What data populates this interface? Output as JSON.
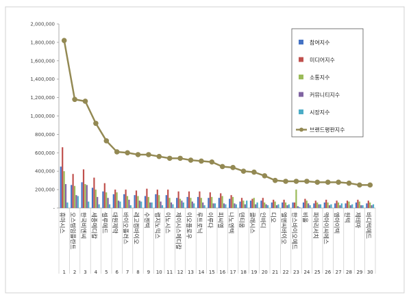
{
  "chart_data": {
    "type": "bar",
    "title": "",
    "xlabel": "",
    "ylabel": "",
    "ylim": [
      0,
      2000000
    ],
    "yticks": [
      "-",
      "200,000",
      "400,000",
      "600,000",
      "800,000",
      "1,000,000",
      "1,200,000",
      "1,400,000",
      "1,600,000",
      "1,800,000",
      "2,000,000"
    ],
    "grid": false,
    "legend_position": "top-right",
    "categories": [
      "휴마시스",
      "오스템임플란트",
      "한국비엔씨",
      "세종메디칼",
      "셀루메드",
      "대원제약",
      "바이오플러스",
      "레고켐바이오",
      "수젠텍",
      "랩지노믹스",
      "이노시스",
      "제이시스메디칼",
      "이오플로우",
      "루트로닉",
      "이루다",
      "피씨엘",
      "나노엔텍",
      "덴티움",
      "클래시스",
      "인바디",
      "디오",
      "엘앤씨바이오",
      "한스바이오메드",
      "비올",
      "파마리서치",
      "맥아이씨에스",
      "엠아이텍",
      "원텍",
      "제테마",
      "바디텍메드"
    ],
    "ranks": [
      "1",
      "2",
      "3",
      "4",
      "5",
      "6",
      "7",
      "8",
      "9",
      "10",
      "11",
      "12",
      "13",
      "14",
      "15",
      "16",
      "17",
      "18",
      "19",
      "20",
      "21",
      "22",
      "23",
      "24",
      "25",
      "26",
      "27",
      "28",
      "29",
      "30"
    ],
    "series": [
      {
        "name": "참여지수",
        "kind": "bar",
        "color": "#4472c4",
        "values": [
          450000,
          250000,
          280000,
          220000,
          180000,
          150000,
          150000,
          140000,
          130000,
          150000,
          140000,
          110000,
          120000,
          120000,
          110000,
          110000,
          100000,
          70000,
          80000,
          80000,
          60000,
          60000,
          60000,
          60000,
          50000,
          60000,
          50000,
          50000,
          60000,
          50000
        ]
      },
      {
        "name": "미디어지수",
        "kind": "bar",
        "color": "#c0504d",
        "values": [
          660000,
          370000,
          420000,
          330000,
          270000,
          200000,
          200000,
          190000,
          210000,
          200000,
          200000,
          180000,
          180000,
          180000,
          170000,
          160000,
          140000,
          110000,
          100000,
          110000,
          90000,
          90000,
          60000,
          100000,
          80000,
          90000,
          80000,
          80000,
          90000,
          80000
        ]
      },
      {
        "name": "소통지수",
        "kind": "bar",
        "color": "#9bbb59",
        "values": [
          400000,
          240000,
          260000,
          200000,
          170000,
          170000,
          130000,
          130000,
          120000,
          140000,
          110000,
          100000,
          110000,
          110000,
          120000,
          130000,
          120000,
          80000,
          110000,
          60000,
          70000,
          60000,
          200000,
          80000,
          60000,
          60000,
          60000,
          70000,
          70000,
          60000
        ]
      },
      {
        "name": "커뮤니티지수",
        "kind": "bar",
        "color": "#8064a2",
        "values": [
          260000,
          140000,
          250000,
          120000,
          110000,
          80000,
          90000,
          80000,
          60000,
          70000,
          60000,
          80000,
          70000,
          60000,
          50000,
          50000,
          50000,
          40000,
          40000,
          40000,
          30000,
          30000,
          20000,
          50000,
          40000,
          30000,
          30000,
          30000,
          30000,
          30000
        ]
      },
      {
        "name": "시장지수",
        "kind": "bar",
        "color": "#4bacc6",
        "values": [
          60000,
          130000,
          70000,
          40000,
          40000,
          70000,
          30000,
          70000,
          60000,
          30000,
          40000,
          60000,
          50000,
          30000,
          50000,
          40000,
          40000,
          80000,
          60000,
          30000,
          40000,
          40000,
          10000,
          30000,
          40000,
          40000,
          50000,
          40000,
          30000,
          40000
        ]
      },
      {
        "name": "브랜드평판지수",
        "kind": "line",
        "color": "#938953",
        "values": [
          1820000,
          1180000,
          1160000,
          920000,
          730000,
          610000,
          600000,
          580000,
          580000,
          560000,
          540000,
          540000,
          520000,
          510000,
          500000,
          450000,
          440000,
          400000,
          390000,
          350000,
          300000,
          290000,
          290000,
          290000,
          280000,
          280000,
          280000,
          270000,
          250000,
          250000
        ]
      }
    ]
  }
}
